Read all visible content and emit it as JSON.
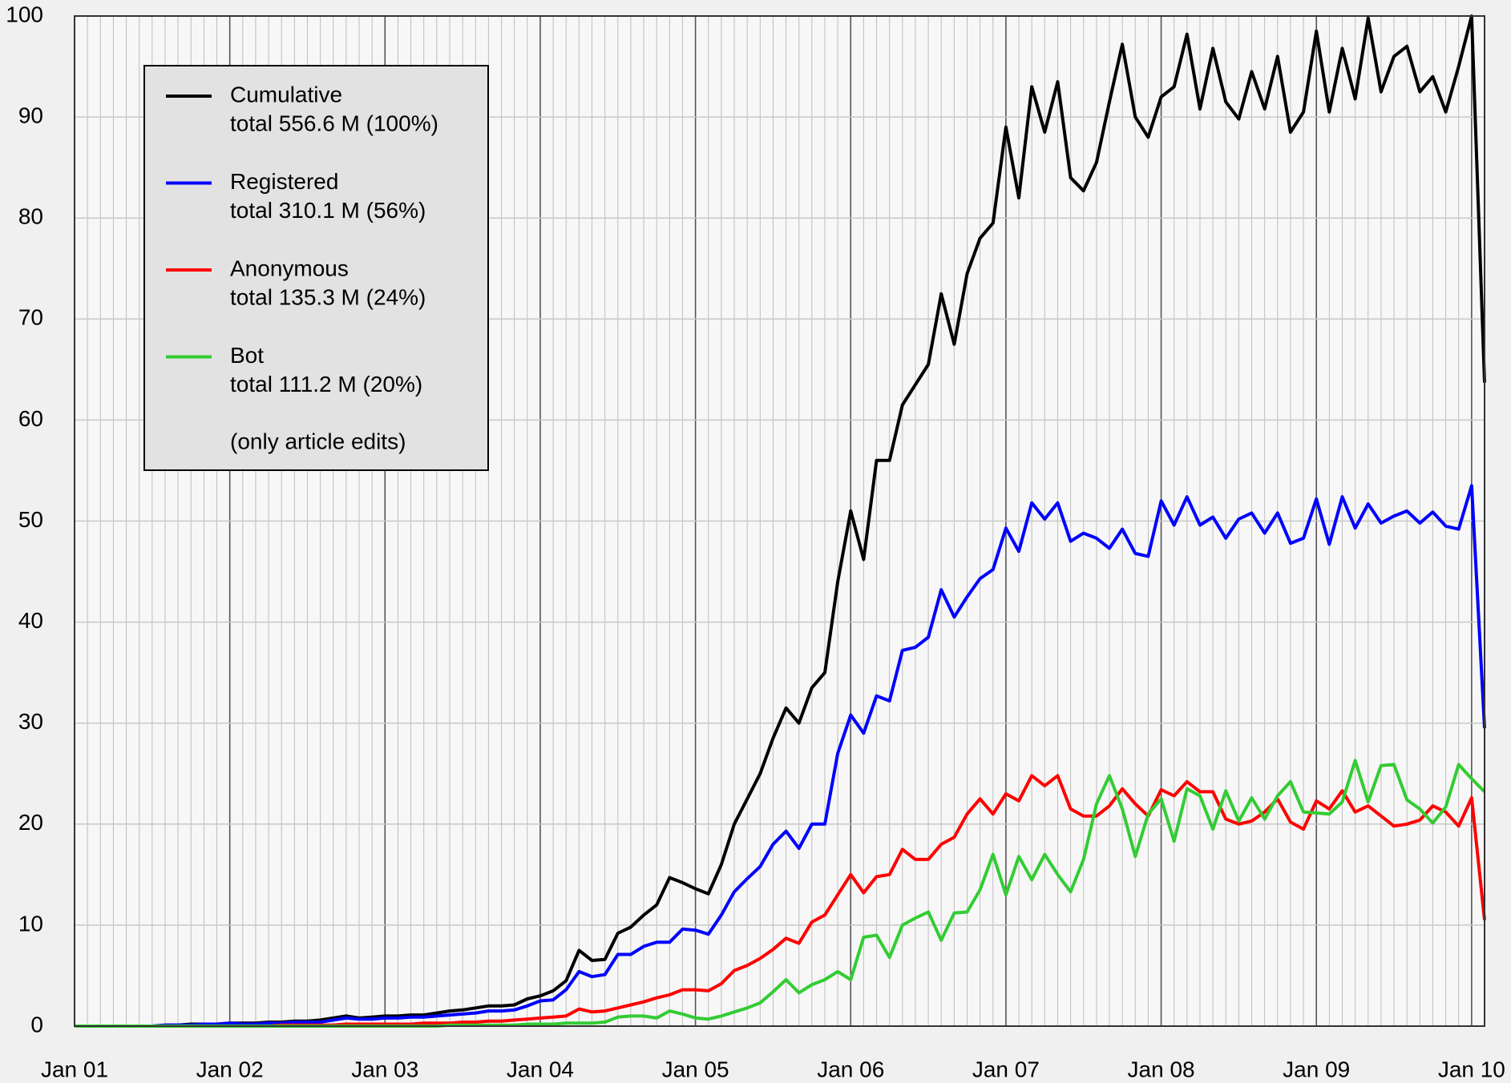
{
  "chart_data": {
    "type": "line",
    "categories": [
      "Jan 01",
      null,
      null,
      null,
      null,
      null,
      null,
      null,
      null,
      null,
      null,
      null,
      "Jan 02",
      null,
      null,
      null,
      null,
      null,
      null,
      null,
      null,
      null,
      null,
      null,
      "Jan 03",
      null,
      null,
      null,
      null,
      null,
      null,
      null,
      null,
      null,
      null,
      null,
      "Jan 04",
      null,
      null,
      null,
      null,
      null,
      null,
      null,
      null,
      null,
      null,
      null,
      "Jan 05",
      null,
      null,
      null,
      null,
      null,
      null,
      null,
      null,
      null,
      null,
      null,
      "Jan 06",
      null,
      null,
      null,
      null,
      null,
      null,
      null,
      null,
      null,
      null,
      null,
      "Jan 07",
      null,
      null,
      null,
      null,
      null,
      null,
      null,
      null,
      null,
      null,
      null,
      "Jan 08",
      null,
      null,
      null,
      null,
      null,
      null,
      null,
      null,
      null,
      null,
      null,
      "Jan 09",
      null,
      null,
      null,
      null,
      null,
      null,
      null,
      null,
      null,
      null,
      null,
      "Jan 10",
      null
    ],
    "series": [
      {
        "name": "Cumulative",
        "total": "total 556.6 M (100%)",
        "color": "#000000",
        "values": [
          0,
          0,
          0,
          0,
          0,
          0,
          0,
          0.1,
          0.1,
          0.2,
          0.2,
          0.2,
          0.3,
          0.3,
          0.3,
          0.4,
          0.4,
          0.5,
          0.5,
          0.6,
          0.8,
          1.0,
          0.8,
          0.9,
          1.0,
          1.0,
          1.1,
          1.1,
          1.3,
          1.5,
          1.6,
          1.8,
          2.0,
          2.0,
          2.1,
          2.7,
          3.0,
          3.5,
          4.5,
          7.5,
          6.5,
          6.6,
          9.2,
          9.8,
          11.0,
          12.0,
          14.7,
          14.2,
          13.6,
          13.1,
          16.0,
          20.0,
          22.5,
          25.0,
          28.5,
          31.5,
          30.0,
          33.5,
          35.0,
          44.0,
          51,
          46.2,
          56,
          56,
          61.5,
          63.5,
          65.5,
          72.5,
          67.5,
          74.5,
          78,
          79.5,
          89,
          82,
          93,
          88.5,
          93.5,
          84,
          82.7,
          85.5,
          91.5,
          97.2,
          90,
          88,
          92,
          93,
          98.2,
          90.8,
          96.8,
          91.5,
          89.8,
          94.5,
          90.8,
          96,
          88.5,
          90.5,
          98.5,
          90.5,
          96.8,
          91.8,
          99.8,
          92.5,
          96,
          97,
          92.5,
          94,
          90.5,
          95,
          100,
          63.7
        ]
      },
      {
        "name": "Registered",
        "total": "total 310.1 M (56%)",
        "color": "#0000ff",
        "values": [
          0,
          0,
          0,
          0,
          0,
          0,
          0,
          0.1,
          0.1,
          0.1,
          0.2,
          0.2,
          0.3,
          0.2,
          0.2,
          0.3,
          0.3,
          0.4,
          0.4,
          0.4,
          0.6,
          0.8,
          0.7,
          0.7,
          0.8,
          0.8,
          0.9,
          0.9,
          1.0,
          1.1,
          1.2,
          1.3,
          1.5,
          1.5,
          1.6,
          2.0,
          2.5,
          2.6,
          3.6,
          5.4,
          4.9,
          5.1,
          7.1,
          7.1,
          7.9,
          8.3,
          8.3,
          9.6,
          9.5,
          9.1,
          11,
          13.3,
          14.6,
          15.8,
          18,
          19.3,
          17.6,
          20,
          20,
          27,
          30.8,
          29,
          32.7,
          32.2,
          37.2,
          37.5,
          38.5,
          43.2,
          40.5,
          42.5,
          44.3,
          45.2,
          49.3,
          47,
          51.8,
          50.2,
          51.8,
          48,
          48.8,
          48.3,
          47.3,
          49.2,
          46.8,
          46.5,
          52,
          49.6,
          52.4,
          49.6,
          50.4,
          48.3,
          50.2,
          50.8,
          48.8,
          50.8,
          47.8,
          48.3,
          52.2,
          47.7,
          52.4,
          49.3,
          51.7,
          49.8,
          50.5,
          51,
          49.8,
          50.9,
          49.5,
          49.2,
          53.5,
          29.5
        ]
      },
      {
        "name": "Anonymous",
        "total": "total 135.3 M (24%)",
        "color": "#ff0000",
        "values": [
          0,
          0,
          0,
          0,
          0,
          0,
          0,
          0,
          0,
          0,
          0,
          0,
          0,
          0,
          0,
          0,
          0.1,
          0.1,
          0.1,
          0.1,
          0.1,
          0.2,
          0.2,
          0.2,
          0.2,
          0.2,
          0.2,
          0.3,
          0.3,
          0.3,
          0.4,
          0.4,
          0.5,
          0.5,
          0.6,
          0.7,
          0.8,
          0.9,
          1.0,
          1.7,
          1.4,
          1.5,
          1.8,
          2.1,
          2.4,
          2.8,
          3.1,
          3.6,
          3.6,
          3.5,
          4.2,
          5.5,
          6.0,
          6.7,
          7.6,
          8.7,
          8.2,
          10.3,
          11,
          13,
          15,
          13.2,
          14.8,
          15,
          17.5,
          16.5,
          16.5,
          18,
          18.7,
          21,
          22.5,
          21,
          23,
          22.3,
          24.8,
          23.8,
          24.8,
          21.5,
          20.8,
          20.8,
          21.8,
          23.5,
          22,
          20.8,
          23.4,
          22.8,
          24.2,
          23.2,
          23.2,
          20.5,
          20,
          20.3,
          21.2,
          22.5,
          20.2,
          19.5,
          22.3,
          21.5,
          23.3,
          21.2,
          21.8,
          20.8,
          19.8,
          20,
          20.4,
          21.8,
          21.2,
          19.8,
          22.6,
          10.5
        ]
      },
      {
        "name": "Bot",
        "total": "total 111.2 M (20%)",
        "color": "#33cc33",
        "values": [
          0,
          0,
          0,
          0,
          0,
          0,
          0,
          0,
          0,
          0,
          0,
          0,
          0,
          0,
          0,
          0,
          0,
          0,
          0,
          0,
          0,
          0,
          0,
          0,
          0,
          0,
          0,
          0,
          0,
          0.1,
          0.1,
          0.1,
          0.1,
          0.1,
          0.1,
          0.2,
          0.2,
          0.2,
          0.3,
          0.3,
          0.3,
          0.4,
          0.9,
          1.0,
          1.0,
          0.8,
          1.5,
          1.2,
          0.8,
          0.7,
          1.0,
          1.4,
          1.8,
          2.3,
          3.4,
          4.6,
          3.3,
          4.1,
          4.6,
          5.4,
          4.6,
          8.8,
          9,
          6.8,
          10,
          10.7,
          11.3,
          8.5,
          11.2,
          11.3,
          13.5,
          17,
          13,
          16.8,
          14.5,
          17,
          15,
          13.3,
          16.5,
          22,
          24.8,
          21.5,
          16.8,
          21,
          22.5,
          18.3,
          23.5,
          22.8,
          19.5,
          23.3,
          20.3,
          22.6,
          20.5,
          22.8,
          24.2,
          21.2,
          21.1,
          21,
          22.2,
          26.3,
          22.2,
          25.8,
          25.9,
          22.4,
          21.5,
          20.1,
          21.7,
          25.9,
          24.5,
          23.2
        ]
      }
    ],
    "legend_note": "(only article edits)",
    "ylim": [
      0,
      100
    ],
    "yticks": [
      0,
      10,
      20,
      30,
      40,
      50,
      60,
      70,
      80,
      90,
      100
    ],
    "grid": true,
    "legend": "upper left"
  }
}
